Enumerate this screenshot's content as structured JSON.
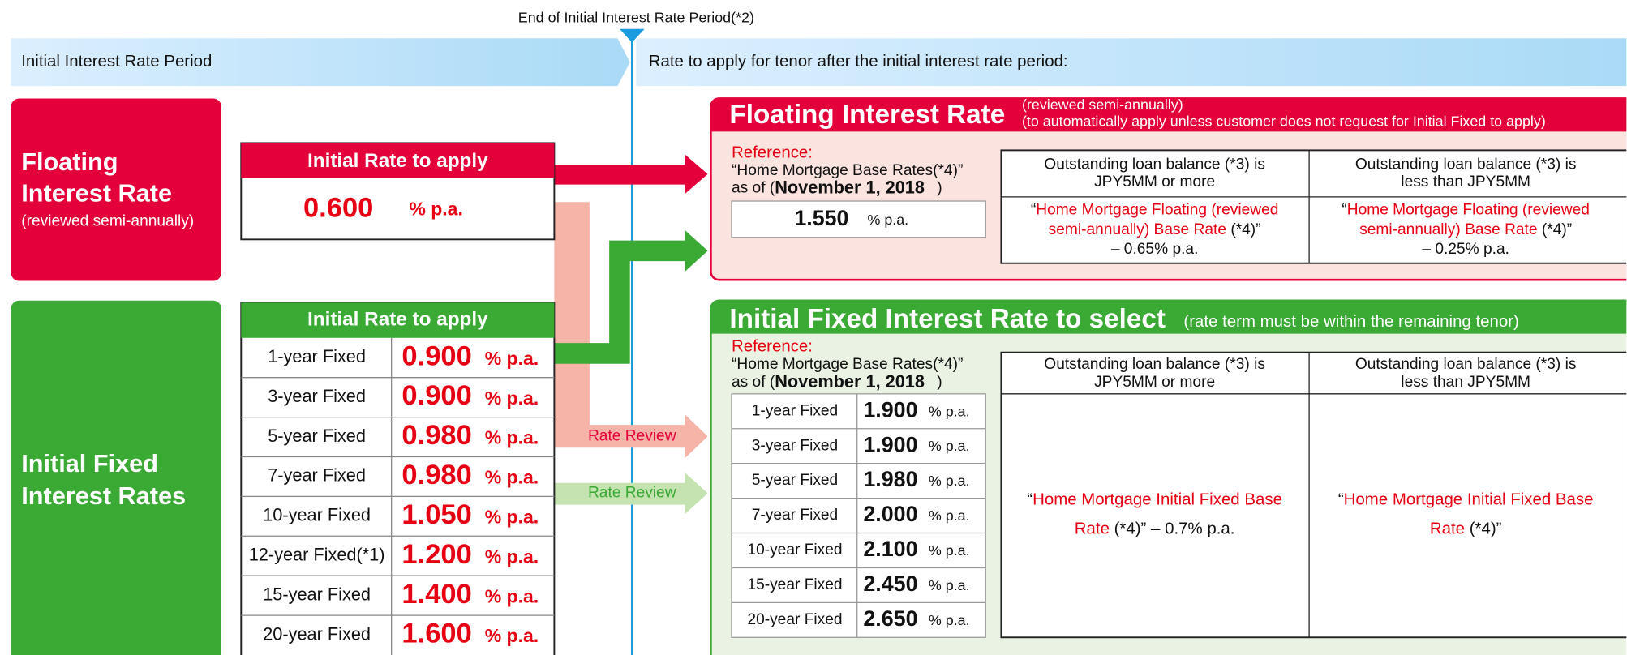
{
  "period_marker": "End of Initial Interest Rate Period(*2)",
  "band": {
    "left": "Initial Interest Rate Period",
    "right": "Rate to apply for tenor after the initial interest rate period:"
  },
  "floating": {
    "title_line1": "Floating",
    "title_line2": "Interest Rate",
    "subtitle": "(reviewed semi-annually)",
    "header": "Initial Rate to apply",
    "rate": "0.600",
    "unit": "% p.a."
  },
  "fixed": {
    "title_line1": "Initial Fixed",
    "title_line2": "Interest Rates",
    "header": "Initial Rate to apply",
    "unit": "% p.a.",
    "rows": [
      [
        "1-year Fixed",
        "0.900"
      ],
      [
        "3-year Fixed",
        "0.900"
      ],
      [
        "5-year Fixed",
        "0.980"
      ],
      [
        "7-year Fixed",
        "0.980"
      ],
      [
        "10-year Fixed",
        "1.050"
      ],
      [
        "12-year Fixed(*1)",
        "1.200"
      ],
      [
        "15-year Fixed",
        "1.400"
      ],
      [
        "20-year Fixed",
        "1.600"
      ]
    ]
  },
  "arrows": {
    "review_floating": "Rate Review",
    "review_fixed": "Rate Review"
  },
  "floating_panel": {
    "title": "Floating Interest Rate",
    "note1": "(reviewed semi-annually)",
    "note2": "(to automatically apply unless customer does not request for Initial Fixed to apply)",
    "reference": "Reference:",
    "ref_line1": "“Home Mortgage Base Rates(*4)”",
    "ref_asof": "as of (",
    "ref_date": "November 1, 2018",
    "ref_close": ")",
    "base_rate": "1.550",
    "unit": "% p.a.",
    "col1_header": [
      "Outstanding loan balance (*3) is",
      "JPY5MM or more"
    ],
    "col2_header": [
      "Outstanding loan balance (*3) is",
      "less than JPY5MM"
    ],
    "col1_cell": {
      "open": "“",
      "red1": "Home Mortgage Floating (reviewed",
      "red2": "semi-annually) Base Rate",
      "close": " (*4)”",
      "line3": "– 0.65% p.a."
    },
    "col2_cell": {
      "open": "“",
      "red1": "Home Mortgage Floating (reviewed",
      "red2": "semi-annually) Base Rate",
      "close": " (*4)”",
      "line3": "– 0.25% p.a."
    }
  },
  "fixed_panel": {
    "title": "Initial Fixed Interest Rate to select",
    "note": "(rate term must be within the remaining tenor)",
    "reference": "Reference:",
    "ref_line1": "“Home Mortgage Base Rates(*4)”",
    "ref_asof": "as of (",
    "ref_date": "November 1, 2018",
    "ref_close": ")",
    "unit": "% p.a.",
    "rows": [
      [
        "1-year Fixed",
        "1.900"
      ],
      [
        "3-year Fixed",
        "1.900"
      ],
      [
        "5-year Fixed",
        "1.980"
      ],
      [
        "7-year Fixed",
        "2.000"
      ],
      [
        "10-year Fixed",
        "2.100"
      ],
      [
        "15-year Fixed",
        "2.450"
      ],
      [
        "20-year Fixed",
        "2.650"
      ]
    ],
    "col1_header": [
      "Outstanding loan balance (*3) is",
      "JPY5MM or more"
    ],
    "col2_header": [
      "Outstanding loan balance (*3) is",
      "less than JPY5MM"
    ],
    "col1_cell": {
      "open": "“",
      "red1": "Home Mortgage Initial Fixed Base",
      "red2": "Rate",
      "close": " (*4)” – 0.7% p.a."
    },
    "col2_cell": {
      "open": "“",
      "red1": "Home Mortgage Initial Fixed Base",
      "red2": "Rate",
      "close": " (*4)”"
    }
  }
}
